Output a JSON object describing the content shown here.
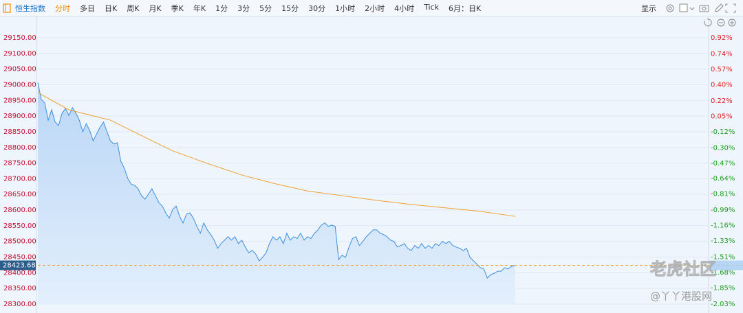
{
  "toolbar": {
    "symbol": "恒生指数",
    "symbol_color": "#1a73c8",
    "tabs": [
      "分时",
      "多日",
      "日K",
      "周K",
      "月K",
      "季K",
      "年K",
      "1分",
      "3分",
      "5分",
      "15分",
      "30分",
      "1小时",
      "2小时",
      "4小时",
      "Tick",
      "6月：日K"
    ],
    "selected_tab": 0,
    "selected_color": "#f08c00",
    "display": "显示"
  },
  "watermarks": [
    "老虎社区",
    "@丫丫港股网"
  ],
  "chart_data": {
    "type": "line",
    "grid": true,
    "ytick_color": "#c8102e",
    "up_color": "#e02020",
    "down_color": "#1a9e1a",
    "xlim": [
      0,
      194
    ],
    "ylim": [
      28300,
      29150
    ],
    "yticks": [
      {
        "value": 28300,
        "label": "28300.00"
      },
      {
        "value": 28350,
        "label": "28350.00"
      },
      {
        "value": 28400,
        "label": "28400.00"
      },
      {
        "value": 28450,
        "label": "28450.00"
      },
      {
        "value": 28500,
        "label": "28500.00"
      },
      {
        "value": 28550,
        "label": "28550.00"
      },
      {
        "value": 28600,
        "label": "28600.00"
      },
      {
        "value": 28650,
        "label": "28650.00"
      },
      {
        "value": 28700,
        "label": "28700.00"
      },
      {
        "value": 28750,
        "label": "28750.00"
      },
      {
        "value": 28800,
        "label": "28800.00"
      },
      {
        "value": 28850,
        "label": "28850.00"
      },
      {
        "value": 28900,
        "label": "28900.00"
      },
      {
        "value": 28950,
        "label": "28950.00"
      },
      {
        "value": 29000,
        "label": "29000.00"
      },
      {
        "value": 29050,
        "label": "29050.00"
      },
      {
        "value": 29100,
        "label": "29100.00"
      },
      {
        "value": 29150,
        "label": "29150.00"
      }
    ],
    "y2lim": [
      -2.03,
      0.92
    ],
    "y2ticks": [
      {
        "value": -2.03,
        "label": "-2.03%"
      },
      {
        "value": -1.85,
        "label": "-1.85%"
      },
      {
        "value": -1.68,
        "label": "-1.68%"
      },
      {
        "value": -1.51,
        "label": "-1.51%"
      },
      {
        "value": -1.33,
        "label": "-1.33%"
      },
      {
        "value": -1.16,
        "label": "-1.16%"
      },
      {
        "value": -0.99,
        "label": "-0.99%"
      },
      {
        "value": -0.81,
        "label": "-0.81%"
      },
      {
        "value": -0.64,
        "label": "-0.64%"
      },
      {
        "value": -0.47,
        "label": "-0.47%"
      },
      {
        "value": -0.3,
        "label": "-0.30%"
      },
      {
        "value": -0.12,
        "label": "-0.12%"
      },
      {
        "value": 0.05,
        "label": "0.05%"
      },
      {
        "value": 0.22,
        "label": "0.22%"
      },
      {
        "value": 0.4,
        "label": "0.40%"
      },
      {
        "value": 0.57,
        "label": "0.57%"
      },
      {
        "value": 0.74,
        "label": "0.74%"
      },
      {
        "value": 0.92,
        "label": "0.92%"
      }
    ],
    "last_price": {
      "value": 28423.68,
      "label": "28423.68"
    },
    "x": [
      0,
      1,
      2,
      3,
      4,
      5,
      6,
      7,
      8,
      9,
      10,
      11,
      12,
      13,
      14,
      15,
      16,
      17,
      18,
      19,
      20,
      21,
      22,
      23,
      24,
      25,
      26,
      27,
      28,
      29,
      30,
      31,
      32,
      33,
      34,
      35,
      36,
      37,
      38,
      39,
      40,
      41,
      42,
      43,
      44,
      45,
      46,
      47,
      48,
      49,
      50,
      51,
      52,
      53,
      54,
      55,
      56,
      57,
      58,
      59,
      60,
      61,
      62,
      63,
      64,
      65,
      66,
      67,
      68,
      69,
      70,
      71,
      72,
      73,
      74,
      75,
      76,
      77,
      78,
      79,
      80,
      81,
      82,
      83,
      84,
      85,
      86,
      87,
      88,
      89,
      90,
      91,
      92,
      93,
      94,
      95,
      96,
      97,
      98,
      99,
      100,
      101,
      102,
      103,
      104,
      105,
      106,
      107,
      108,
      109,
      110,
      111,
      112,
      113,
      114,
      115,
      116,
      117,
      118,
      119,
      120,
      121,
      122,
      123,
      124,
      125,
      126,
      127,
      128,
      129,
      130,
      131,
      132,
      133,
      134,
      135,
      136,
      137,
      138
    ],
    "series": [
      {
        "color": "#3b8fe0",
        "fill": true,
        "values": [
          29007,
          28953,
          28942,
          28887,
          28920,
          28881,
          28870,
          28909,
          28924,
          28902,
          28927,
          28909,
          28887,
          28850,
          28876,
          28854,
          28821,
          28843,
          28865,
          28881,
          28850,
          28821,
          28811,
          28815,
          28756,
          28734,
          28701,
          28683,
          28679,
          28668,
          28646,
          28635,
          28651,
          28668,
          28646,
          28624,
          28613,
          28591,
          28574,
          28602,
          28613,
          28580,
          28559,
          28587,
          28591,
          28574,
          28548,
          28526,
          28559,
          28537,
          28522,
          28504,
          28478,
          28493,
          28504,
          28515,
          28504,
          28515,
          28493,
          28504,
          28482,
          28464,
          28471,
          28460,
          28438,
          28449,
          28464,
          28493,
          28515,
          28504,
          28515,
          28493,
          28526,
          28504,
          28515,
          28509,
          28526,
          28504,
          28515,
          28509,
          28526,
          28537,
          28552,
          28559,
          28548,
          28552,
          28548,
          28442,
          28456,
          28449,
          28482,
          28509,
          28515,
          28487,
          28500,
          28515,
          28526,
          28537,
          28537,
          28526,
          28522,
          28515,
          28504,
          28500,
          28482,
          28487,
          28493,
          28478,
          28471,
          28487,
          28478,
          28493,
          28478,
          28487,
          28478,
          28493,
          28487,
          28500,
          28493,
          28500,
          28487,
          28482,
          28478,
          28471,
          28478,
          28449,
          28438,
          28427,
          28416,
          28412,
          28383,
          28394,
          28398,
          28405,
          28405,
          28416,
          28412,
          28420,
          28424
        ]
      },
      {
        "color": "#f0a030",
        "fill": false,
        "x": [
          0,
          9,
          21,
          29,
          39,
          49,
          59,
          69,
          78,
          88,
          98,
          108,
          118,
          128,
          138
        ],
        "values": [
          28975,
          28920,
          28887,
          28843,
          28789,
          28749,
          28712,
          28683,
          28661,
          28646,
          28631,
          28618,
          28607,
          28596,
          28580
        ]
      }
    ]
  }
}
